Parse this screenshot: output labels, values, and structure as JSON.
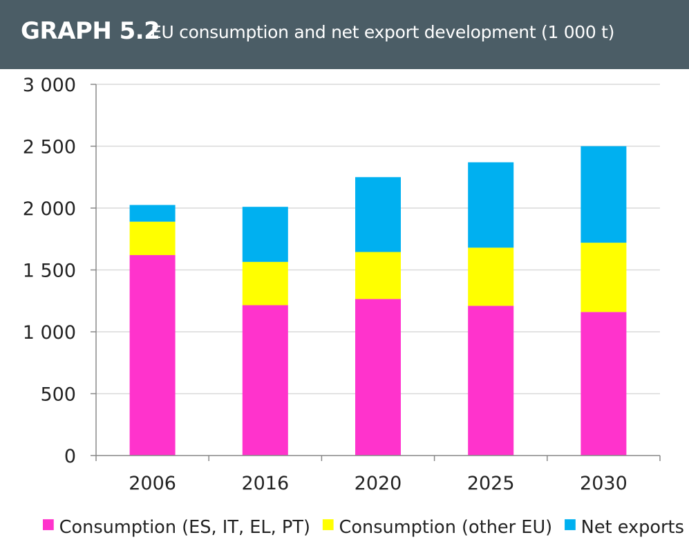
{
  "header": {
    "label": "GRAPH 5.2",
    "title": "EU consumption and net export development (1 000 t)"
  },
  "chart_data": {
    "type": "bar",
    "stacked": true,
    "categories": [
      "2006",
      "2016",
      "2020",
      "2025",
      "2030"
    ],
    "series": [
      {
        "name": "Consumption (ES, IT, EL, PT)",
        "color": "#ff33cc",
        "values": [
          1620,
          1215,
          1265,
          1210,
          1160
        ]
      },
      {
        "name": "Consumption (other EU)",
        "color": "#ffff00",
        "values": [
          270,
          350,
          380,
          470,
          560
        ]
      },
      {
        "name": "Net exports",
        "color": "#00b0f0",
        "values": [
          135,
          445,
          605,
          690,
          780
        ]
      }
    ],
    "ylim": [
      0,
      3000
    ],
    "yticks": [
      0,
      500,
      1000,
      1500,
      2000,
      2500,
      3000
    ],
    "ytick_labels": [
      "0",
      "500",
      "1 000",
      "1 500",
      "2 000",
      "2 500",
      "3 000"
    ],
    "grid": true,
    "legend": "bottom"
  }
}
